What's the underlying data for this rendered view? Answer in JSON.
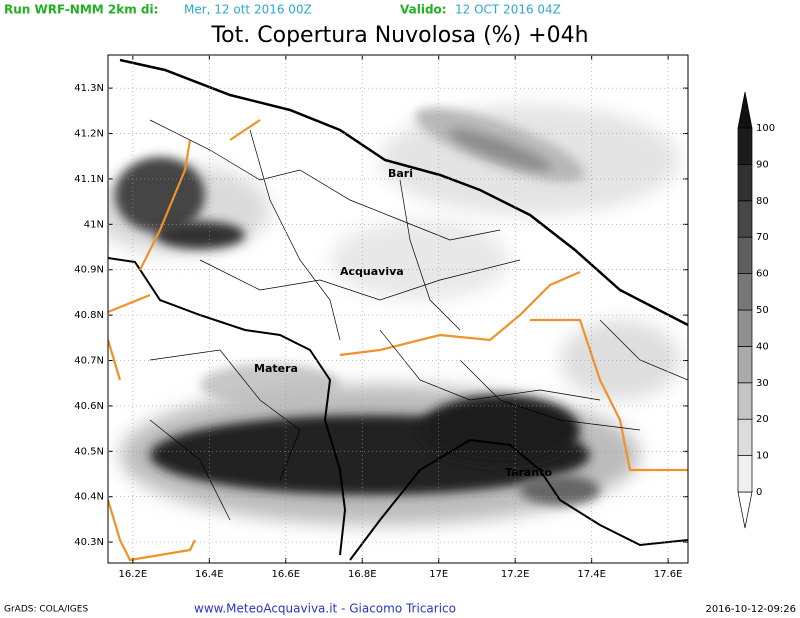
{
  "header": {
    "run_label": "Run WRF-NMM 2km di:",
    "run_date": "Mer, 12 ott 2016 00Z",
    "valid_label": "Valido:",
    "valid_date": "12 OCT 2016 04Z",
    "title": "Tot. Copertura Nuvolosa (%) +04h"
  },
  "map": {
    "lonlim": [
      16.135,
      17.652
    ],
    "latlim": [
      40.254,
      41.373
    ],
    "lonticks": [
      {
        "value": 16.2,
        "label": "16.2E"
      },
      {
        "value": 16.4,
        "label": "16.4E"
      },
      {
        "value": 16.6,
        "label": "16.6E"
      },
      {
        "value": 16.8,
        "label": "16.8E"
      },
      {
        "value": 17.0,
        "label": "17E"
      },
      {
        "value": 17.2,
        "label": "17.2E"
      },
      {
        "value": 17.4,
        "label": "17.4E"
      },
      {
        "value": 17.6,
        "label": "17.6E"
      }
    ],
    "latticks": [
      {
        "value": 40.3,
        "label": "40.3N"
      },
      {
        "value": 40.4,
        "label": "40.4N"
      },
      {
        "value": 40.5,
        "label": "40.5N"
      },
      {
        "value": 40.6,
        "label": "40.6N"
      },
      {
        "value": 40.7,
        "label": "40.7N"
      },
      {
        "value": 40.8,
        "label": "40.8N"
      },
      {
        "value": 40.9,
        "label": "40.9N"
      },
      {
        "value": 41.0,
        "label": "41N"
      },
      {
        "value": 41.1,
        "label": "41.1N"
      },
      {
        "value": 41.2,
        "label": "41.2N"
      },
      {
        "value": 41.3,
        "label": "41.3N"
      }
    ],
    "places": [
      "Bari",
      "Acquaviva",
      "Matera",
      "Taranto"
    ]
  },
  "colorbar": {
    "levels": [
      0,
      10,
      20,
      30,
      40,
      50,
      60,
      70,
      80,
      90,
      100
    ],
    "colors": [
      "#ffffff",
      "#f0f0f0",
      "#dcdcdc",
      "#c4c4c4",
      "#aaaaaa",
      "#909090",
      "#777777",
      "#5e5e5e",
      "#474747",
      "#313131",
      "#1c1c1c",
      "#111111"
    ]
  },
  "footer": {
    "software": "GrADS: COLA/IGES",
    "credits": "www.MeteoAcquaviva.it - Giacomo Tricarico",
    "timestamp": "2016-10-12-09:26"
  }
}
